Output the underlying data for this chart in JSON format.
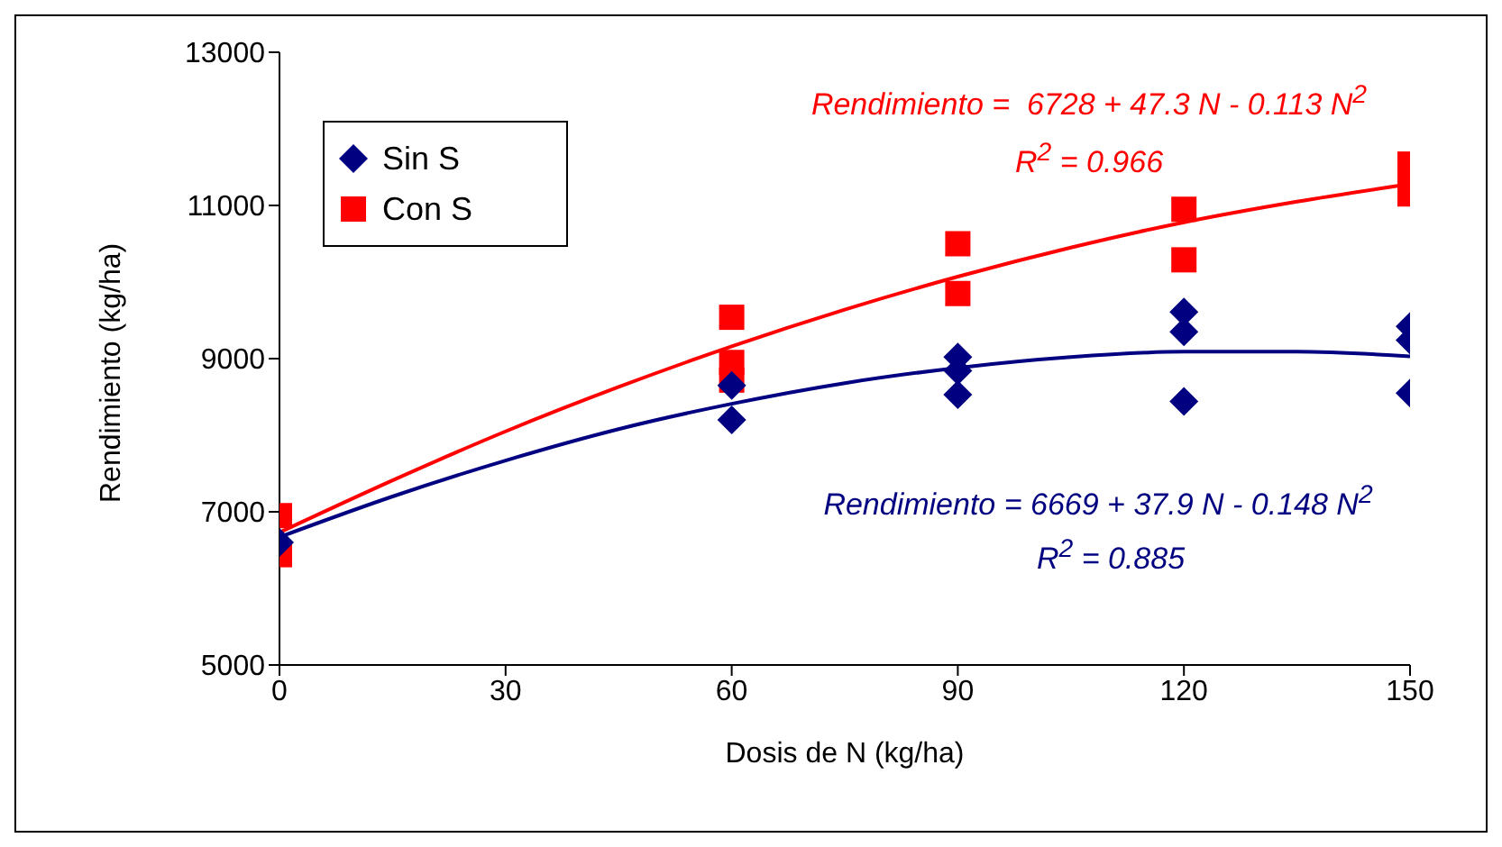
{
  "chart_data": {
    "type": "scatter",
    "xlabel": "Dosis de N (kg/ha)",
    "ylabel": "Rendimiento (kg/ha)",
    "xlim": [
      0,
      150
    ],
    "xticks": [
      0,
      30,
      60,
      90,
      120,
      150
    ],
    "ylim": [
      5000,
      13000
    ],
    "yticks": [
      5000,
      7000,
      9000,
      11000,
      13000
    ],
    "legend": "top left",
    "series": [
      {
        "name": "Sin S",
        "marker": "diamond",
        "color": "#000080",
        "x": [
          0,
          60,
          60,
          90,
          90,
          90,
          120,
          120,
          120,
          150,
          150,
          150
        ],
        "values": [
          6600,
          8200,
          8650,
          9020,
          8840,
          8530,
          9610,
          9350,
          8440,
          9420,
          9240,
          8550
        ]
      },
      {
        "name": "Con S",
        "marker": "square",
        "color": "#ff0000",
        "x": [
          0,
          0,
          60,
          60,
          60,
          90,
          90,
          120,
          120,
          150,
          150,
          150
        ],
        "values": [
          6950,
          6440,
          9540,
          8950,
          8720,
          10500,
          9850,
          10950,
          10290,
          11540,
          11300,
          11150
        ]
      },
      {
        "type": "line",
        "marker": "none",
        "color": "#ff0000",
        "x": [
          0,
          15,
          30,
          45,
          60,
          75,
          90,
          105,
          120,
          135,
          150
        ],
        "values": [
          6730,
          7410,
          8050,
          8630,
          9160,
          9640,
          10070,
          10450,
          10780,
          11050,
          11280
        ]
      },
      {
        "type": "line",
        "marker": "none",
        "color": "#000080",
        "x": [
          0,
          15,
          30,
          45,
          60,
          75,
          90,
          105,
          120,
          135,
          150
        ],
        "values": [
          6670,
          7200,
          7670,
          8080,
          8410,
          8680,
          8880,
          9020,
          9090,
          9090,
          9030
        ]
      }
    ],
    "annotations": [
      "Rendimiento =  6728 + 47.3 N - 0.113 N$^{2}$",
      "R$^{2}$ = 0.966",
      "Rendimiento = 6669 + 37.9 N - 0.148 N$^{2}$",
      "R$^{2}$ = 0.885"
    ]
  }
}
